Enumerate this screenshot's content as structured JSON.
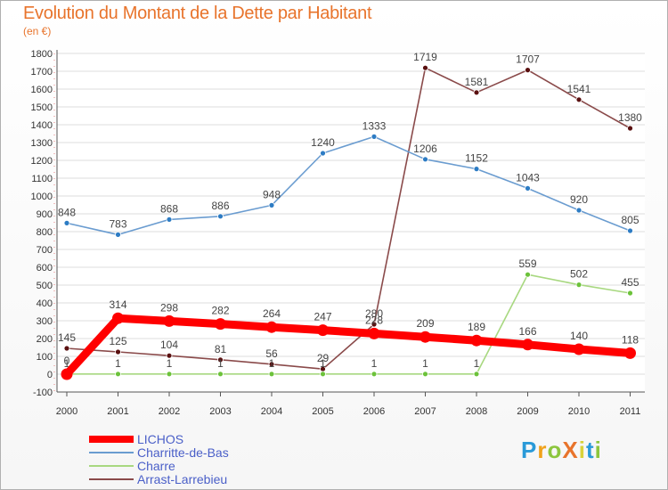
{
  "header": {
    "title": "Evolution du Montant de la Dette par Habitant",
    "unit": "(en €)"
  },
  "logo": {
    "text": "ProXiti",
    "letters": [
      "P",
      "r",
      "o",
      "X",
      "i",
      "t",
      "i"
    ],
    "colors": [
      "#2a9ad8",
      "#f0a21a",
      "#8cc63e",
      "#e8742c",
      "#d9d23a",
      "#2a9ad8",
      "#8cc63e"
    ]
  },
  "chart_data": {
    "type": "line",
    "title": "Evolution du Montant de la Dette par Habitant",
    "ylabel": "(en €)",
    "xlabel": "",
    "ylim": [
      -100,
      1800
    ],
    "yticks": [
      -100,
      0,
      100,
      200,
      300,
      400,
      500,
      600,
      700,
      800,
      900,
      1000,
      1100,
      1200,
      1300,
      1400,
      1500,
      1600,
      1700,
      1800
    ],
    "categories": [
      "2000",
      "2001",
      "2002",
      "2003",
      "2004",
      "2005",
      "2006",
      "2007",
      "2008",
      "2009",
      "2010",
      "2011"
    ],
    "grid": true,
    "legend_position": "bottom-left",
    "series": [
      {
        "name": "LICHOS",
        "color": "#ff0000",
        "dot": "#ff0000",
        "width": "thick",
        "values": [
          0,
          314,
          298,
          282,
          264,
          247,
          228,
          209,
          189,
          166,
          140,
          118
        ]
      },
      {
        "name": "Charritte-de-Bas",
        "color": "#6a9cd0",
        "dot": "#2d7cc4",
        "width": "thin",
        "values": [
          848,
          783,
          868,
          886,
          948,
          1240,
          1333,
          1206,
          1152,
          1043,
          920,
          805
        ]
      },
      {
        "name": "Charre",
        "color": "#a8d880",
        "dot": "#6cc23a",
        "width": "thin",
        "values": [
          1,
          1,
          1,
          1,
          1,
          1,
          1,
          1,
          1,
          559,
          502,
          455
        ]
      },
      {
        "name": "Arrast-Larrebieu",
        "color": "#8a4a4a",
        "dot": "#5a1010",
        "width": "thin",
        "values": [
          145,
          125,
          104,
          81,
          56,
          29,
          280,
          1719,
          1581,
          1707,
          1541,
          1380
        ]
      }
    ]
  }
}
